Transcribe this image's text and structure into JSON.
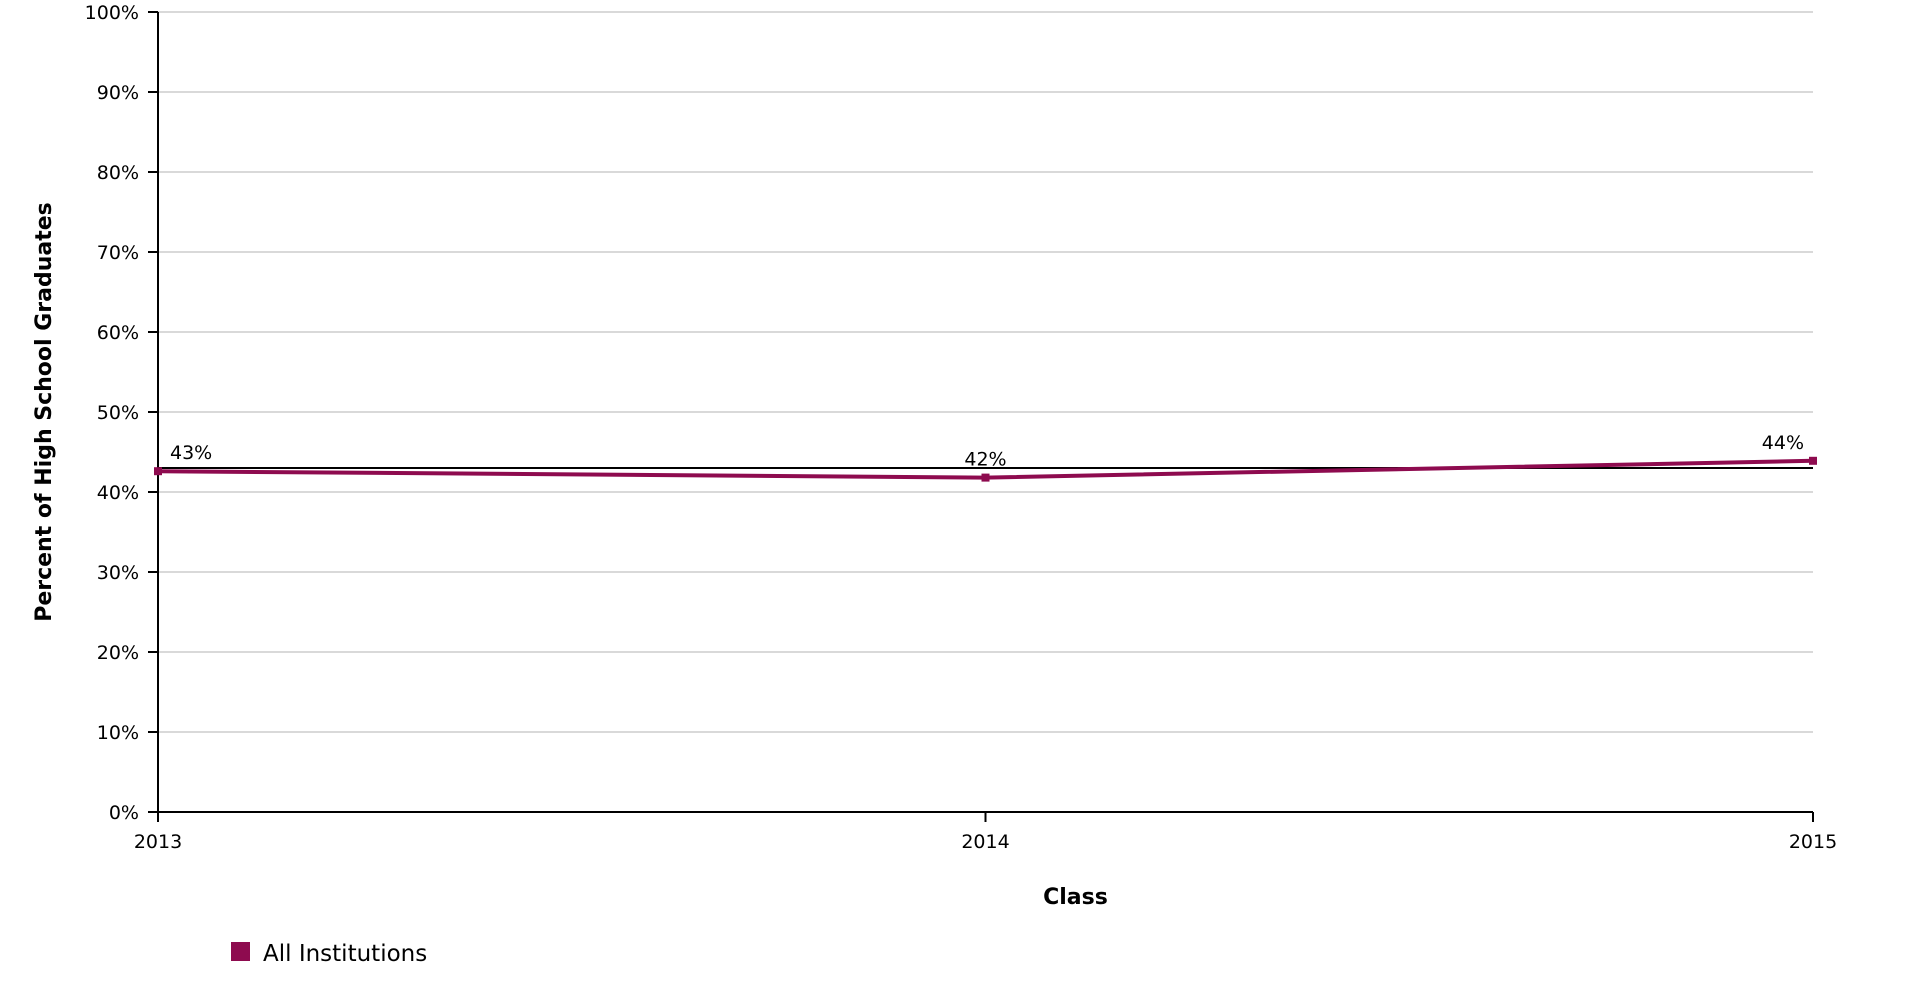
{
  "chart_data": {
    "type": "line",
    "xlabel": "Class",
    "ylabel": "Percent of High School Graduates",
    "categories": [
      "2013",
      "2014",
      "2015"
    ],
    "ylim": [
      0,
      100
    ],
    "y_ticks": [
      0,
      10,
      20,
      30,
      40,
      50,
      60,
      70,
      80,
      90,
      100
    ],
    "y_tick_labels": [
      "0%",
      "10%",
      "20%",
      "30%",
      "40%",
      "50%",
      "60%",
      "70%",
      "80%",
      "90%",
      "100%"
    ],
    "series": [
      {
        "name": "All Institutions",
        "values": [
          42.6,
          41.8,
          43.9
        ],
        "data_labels": [
          "43%",
          "42%",
          "44%"
        ],
        "color": "#8e0b4f"
      }
    ],
    "reference_line": {
      "value": 43.0,
      "color": "#000000"
    },
    "grid": true,
    "legend_position": "bottom-left"
  }
}
